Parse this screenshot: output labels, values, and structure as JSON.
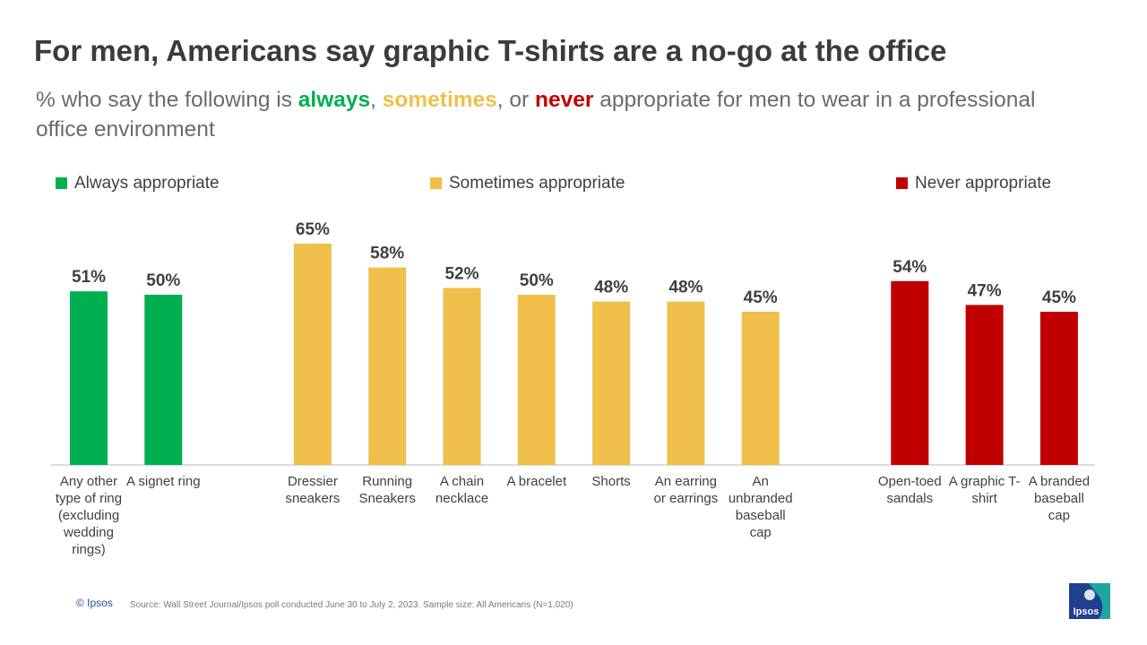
{
  "title": "For men, Americans say graphic T-shirts are a no-go at the office",
  "subtitle": [
    "% who say the following is ",
    "always",
    ", ",
    "sometimes",
    ", or ",
    "never",
    " appropriate for men to wear in a professional office environment"
  ],
  "chart_data": {
    "type": "bar",
    "categories": [
      "Any other type of ring (excluding wedding rings)",
      "A signet ring",
      "Dressier sneakers",
      "Running Sneakers",
      "A chain necklace",
      "A bracelet",
      "Shorts",
      "An earring or earrings",
      "An unbranded baseball cap",
      "Open-toed sandals",
      "A graphic T-shirt",
      "A branded baseball cap"
    ],
    "series": [
      {
        "name": "Always appropriate",
        "color": "#00b050",
        "values": [
          51,
          50,
          null,
          null,
          null,
          null,
          null,
          null,
          null,
          null,
          null,
          null
        ],
        "value_labels": [
          "51%",
          "50%",
          null,
          null,
          null,
          null,
          null,
          null,
          null,
          null,
          null,
          null
        ]
      },
      {
        "name": "Sometimes appropriate",
        "color": "#f0bf4c",
        "values": [
          null,
          null,
          65,
          58,
          52,
          50,
          48,
          48,
          45,
          null,
          null,
          null
        ],
        "value_labels": [
          null,
          null,
          "65%",
          "58%",
          "52%",
          "50%",
          "48%",
          "48%",
          "45%",
          null,
          null,
          null
        ]
      },
      {
        "name": "Never appropriate",
        "color": "#c00000",
        "values": [
          null,
          null,
          null,
          null,
          null,
          null,
          null,
          null,
          null,
          54,
          47,
          45
        ],
        "value_labels": [
          null,
          null,
          null,
          null,
          null,
          null,
          null,
          null,
          null,
          "54%",
          "47%",
          "45%"
        ]
      }
    ]
  },
  "footer": {
    "copyright": "© Ipsos",
    "source": "Source: Wall Street Journal/Ipsos poll conducted June 30 to July 2, 2023. Sample size: All Americans (N=1,020)",
    "logo": "Ipsos"
  }
}
